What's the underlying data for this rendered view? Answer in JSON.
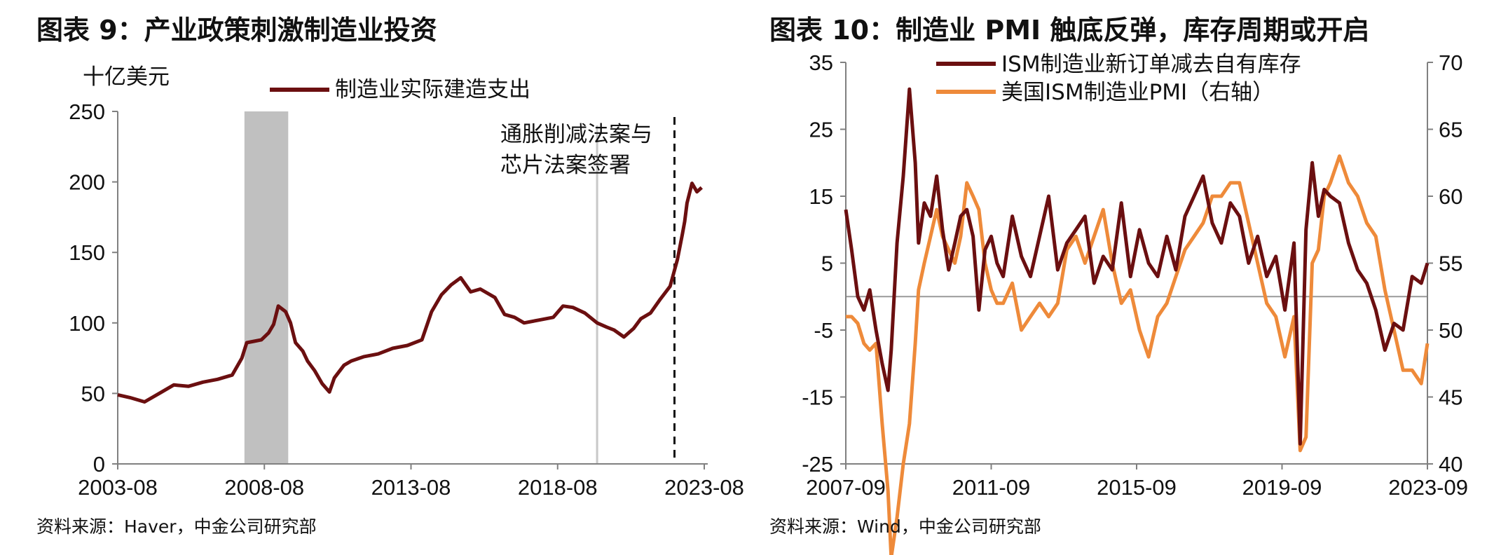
{
  "chart_data": [
    {
      "type": "line",
      "title": "图表 9：产业政策刺激制造业投资",
      "ylabel": "十亿美元",
      "ylim": [
        0,
        250
      ],
      "yticks": [
        "0",
        "50",
        "100",
        "150",
        "200",
        "250"
      ],
      "x_tick_labels": [
        "2003-08",
        "2008-08",
        "2013-08",
        "2018-08",
        "2023-08"
      ],
      "xlim": [
        2003.58,
        2023.67
      ],
      "grid": false,
      "legend": "top-center",
      "annotation": {
        "lines": [
          "通胀削减法案与",
          "芯片法案签署"
        ],
        "x": 2022.65
      },
      "shaded_period": [
        2007.92,
        2009.42
      ],
      "reference_line_x": 2020.0,
      "line_color": "#6b0f10",
      "series": [
        {
          "name": "制造业实际建造支出",
          "x": [
            2003.58,
            2004.0,
            2004.5,
            2005.0,
            2005.5,
            2006.0,
            2006.5,
            2007.0,
            2007.5,
            2007.83,
            2008.0,
            2008.25,
            2008.5,
            2008.75,
            2008.92,
            2009.08,
            2009.33,
            2009.5,
            2009.67,
            2009.92,
            2010.08,
            2010.33,
            2010.58,
            2010.83,
            2011.0,
            2011.33,
            2011.58,
            2012.0,
            2012.5,
            2013.0,
            2013.5,
            2014.0,
            2014.33,
            2014.67,
            2015.0,
            2015.33,
            2015.67,
            2016.0,
            2016.5,
            2016.83,
            2017.17,
            2017.5,
            2018.0,
            2018.5,
            2018.83,
            2019.17,
            2019.58,
            2020.0,
            2020.33,
            2020.58,
            2020.92,
            2021.25,
            2021.5,
            2021.83,
            2022.17,
            2022.5,
            2022.75,
            2022.92,
            2023.0,
            2023.08,
            2023.25,
            2023.42,
            2023.58
          ],
          "values": [
            49,
            47,
            44,
            50,
            56,
            55,
            58,
            60,
            63,
            75,
            86,
            87,
            88,
            93,
            99,
            112,
            108,
            100,
            86,
            80,
            73,
            66,
            57,
            51,
            61,
            70,
            73,
            76,
            78,
            82,
            84,
            88,
            108,
            120,
            127,
            132,
            122,
            124,
            118,
            106,
            104,
            100,
            102,
            104,
            112,
            111,
            107,
            100,
            97,
            95,
            90,
            96,
            103,
            107,
            117,
            126,
            145,
            163,
            172,
            185,
            199,
            193,
            196
          ]
        }
      ]
    },
    {
      "type": "line",
      "title": "图表 10：制造业 PMI 触底反弹，库存周期或开启",
      "ylim": [
        -25,
        35
      ],
      "yticks": [
        "35",
        "25",
        "15",
        "5",
        "-5",
        "-15",
        "-25"
      ],
      "y2lim": [
        40,
        70
      ],
      "y2ticks": [
        "70",
        "65",
        "60",
        "55",
        "50",
        "45",
        "40"
      ],
      "x_tick_labels": [
        "2007-09",
        "2011-09",
        "2015-09",
        "2019-09",
        "2023-09"
      ],
      "xlim": [
        2007.67,
        2023.67
      ],
      "zero_line": true,
      "grid": false,
      "legend": "top-center",
      "series": [
        {
          "name": "ISM制造业新订单减去自有库存",
          "axis": "left",
          "color": "#6b0f10",
          "x": [
            2007.67,
            2007.83,
            2008.0,
            2008.17,
            2008.33,
            2008.5,
            2008.67,
            2008.83,
            2008.92,
            2009.08,
            2009.25,
            2009.42,
            2009.58,
            2009.67,
            2009.83,
            2010.0,
            2010.17,
            2010.33,
            2010.5,
            2010.67,
            2010.83,
            2011.0,
            2011.17,
            2011.33,
            2011.5,
            2011.67,
            2011.83,
            2012.0,
            2012.25,
            2012.5,
            2012.75,
            2013.0,
            2013.25,
            2013.5,
            2013.75,
            2014.0,
            2014.25,
            2014.5,
            2014.75,
            2015.0,
            2015.25,
            2015.5,
            2015.75,
            2016.0,
            2016.25,
            2016.5,
            2016.75,
            2017.0,
            2017.25,
            2017.5,
            2017.75,
            2018.0,
            2018.25,
            2018.5,
            2018.75,
            2019.0,
            2019.25,
            2019.5,
            2019.75,
            2020.0,
            2020.17,
            2020.33,
            2020.5,
            2020.67,
            2020.83,
            2021.0,
            2021.25,
            2021.5,
            2021.75,
            2022.0,
            2022.25,
            2022.5,
            2022.75,
            2023.0,
            2023.25,
            2023.5,
            2023.67
          ],
          "values": [
            13,
            7,
            0,
            -2,
            1,
            -5,
            -10,
            -14,
            -8,
            8,
            18,
            31,
            20,
            8,
            14,
            12,
            18,
            10,
            4,
            8,
            12,
            13,
            9,
            -2,
            7,
            9,
            5,
            3,
            12,
            6,
            3,
            9,
            15,
            4,
            8,
            10,
            12,
            2,
            6,
            4,
            14,
            3,
            10,
            5,
            3,
            9,
            4,
            12,
            15,
            18,
            11,
            8,
            14,
            12,
            5,
            9,
            3,
            6,
            -2,
            8,
            -22,
            10,
            20,
            12,
            16,
            15,
            14,
            8,
            4,
            2,
            -2,
            -8,
            -4,
            -5,
            3,
            2,
            5
          ]
        },
        {
          "name": "美国ISM制造业PMI（右轴）",
          "axis": "right",
          "color": "#ee8a3a",
          "x": [
            2007.67,
            2007.83,
            2008.0,
            2008.17,
            2008.33,
            2008.5,
            2008.67,
            2008.83,
            2008.92,
            2009.08,
            2009.25,
            2009.42,
            2009.58,
            2009.67,
            2009.83,
            2010.0,
            2010.17,
            2010.33,
            2010.5,
            2010.67,
            2010.83,
            2011.0,
            2011.17,
            2011.33,
            2011.5,
            2011.67,
            2011.83,
            2012.0,
            2012.25,
            2012.5,
            2012.75,
            2013.0,
            2013.25,
            2013.5,
            2013.75,
            2014.0,
            2014.25,
            2014.5,
            2014.75,
            2015.0,
            2015.25,
            2015.5,
            2015.75,
            2016.0,
            2016.25,
            2016.5,
            2016.75,
            2017.0,
            2017.25,
            2017.5,
            2017.75,
            2018.0,
            2018.25,
            2018.5,
            2018.75,
            2019.0,
            2019.25,
            2019.5,
            2019.75,
            2020.0,
            2020.17,
            2020.33,
            2020.5,
            2020.67,
            2020.83,
            2021.0,
            2021.25,
            2021.5,
            2021.75,
            2022.0,
            2022.25,
            2022.5,
            2022.75,
            2023.0,
            2023.25,
            2023.5,
            2023.67
          ],
          "values": [
            51,
            51,
            50.5,
            49,
            48.5,
            49,
            43,
            38,
            33,
            36,
            40,
            43,
            49,
            53,
            55,
            57,
            59,
            57,
            56,
            55,
            57,
            61,
            60,
            59,
            55,
            53,
            52,
            52,
            53.5,
            50,
            51,
            52,
            51,
            52,
            56,
            57,
            55,
            57,
            59,
            55,
            52,
            53,
            50,
            48,
            51,
            52,
            54,
            56,
            57,
            58,
            60,
            60,
            61,
            61,
            58,
            55,
            52,
            51,
            48,
            51,
            41,
            42,
            55,
            56,
            60,
            61,
            63,
            61,
            60,
            58,
            57,
            53,
            50,
            47,
            47,
            46,
            49
          ]
        }
      ]
    }
  ],
  "sources": {
    "left": "资料来源：Haver，中金公司研究部",
    "right": "资料来源：Wind，中金公司研究部"
  },
  "colors": {
    "dark_red": "#6b0f10",
    "orange": "#ee8a3a",
    "shade": "#c0c0c0",
    "axis": "#808080"
  }
}
